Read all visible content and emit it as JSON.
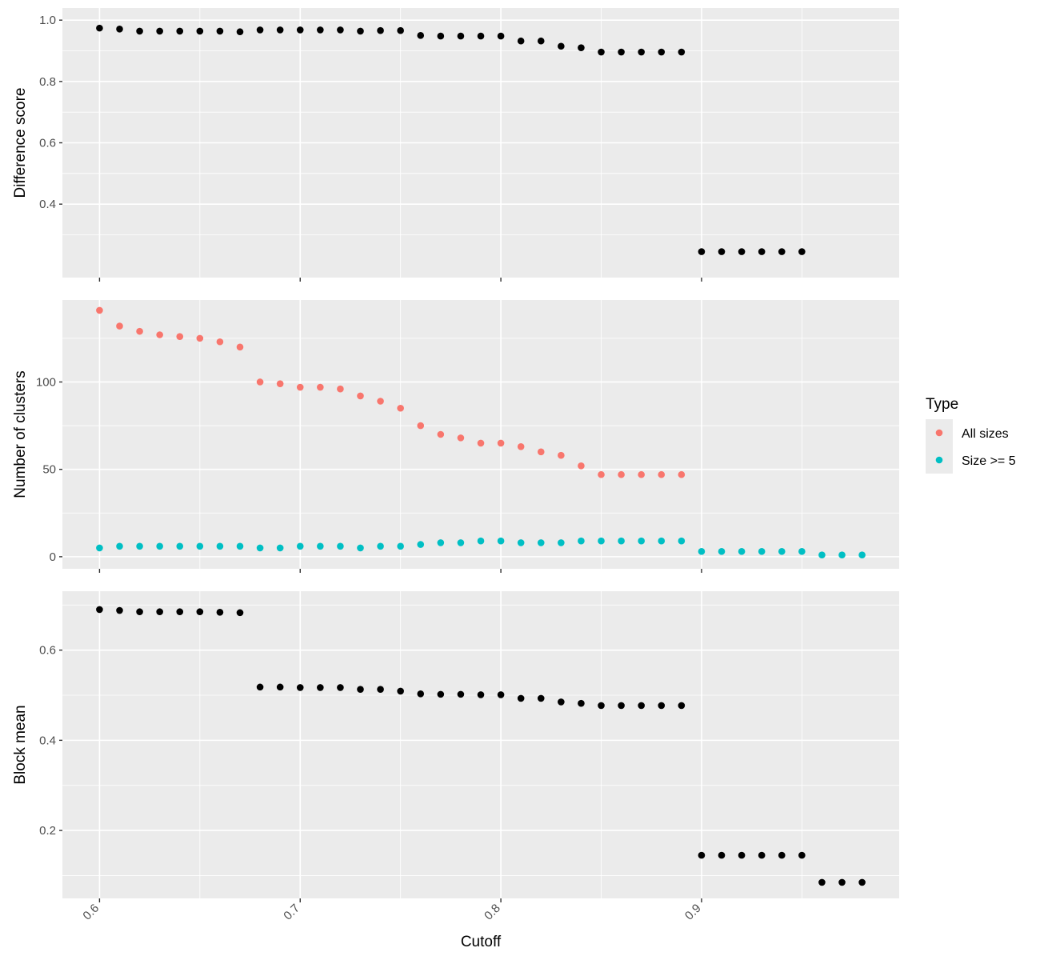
{
  "chart_data": [
    {
      "type": "scatter",
      "ylabel": "Difference score",
      "ylim": [
        0.2,
        1.0
      ],
      "y_ticks": [
        "0.4",
        "0.6",
        "0.8",
        "1.0"
      ],
      "y_tick_values": [
        0.4,
        0.6,
        0.8,
        1.0
      ],
      "y_minor": [
        0.3,
        0.5,
        0.7,
        0.9
      ],
      "series": [
        {
          "color": "#000000",
          "x": [
            0.6,
            0.61,
            0.62,
            0.63,
            0.64,
            0.65,
            0.66,
            0.67,
            0.68,
            0.69,
            0.7,
            0.71,
            0.72,
            0.73,
            0.74,
            0.75,
            0.76,
            0.77,
            0.78,
            0.79,
            0.8,
            0.81,
            0.82,
            0.83,
            0.84,
            0.85,
            0.86,
            0.87,
            0.88,
            0.89,
            0.9,
            0.91,
            0.92,
            0.93,
            0.94,
            0.95
          ],
          "y": [
            0.974,
            0.971,
            0.964,
            0.964,
            0.964,
            0.964,
            0.964,
            0.962,
            0.968,
            0.968,
            0.968,
            0.968,
            0.968,
            0.964,
            0.966,
            0.966,
            0.95,
            0.948,
            0.948,
            0.948,
            0.948,
            0.932,
            0.932,
            0.915,
            0.91,
            0.896,
            0.896,
            0.896,
            0.896,
            0.896,
            0.245,
            0.245,
            0.245,
            0.245,
            0.245,
            0.245
          ]
        }
      ]
    },
    {
      "type": "scatter",
      "ylabel": "Number of clusters",
      "ylim": [
        0,
        140
      ],
      "y_ticks": [
        "0",
        "50",
        "100"
      ],
      "y_tick_values": [
        0,
        50,
        100
      ],
      "y_minor": [
        25,
        75,
        125
      ],
      "legend": {
        "title": "Type",
        "position": "right"
      },
      "series": [
        {
          "name": "All sizes",
          "color": "#f8766d",
          "x": [
            0.6,
            0.61,
            0.62,
            0.63,
            0.64,
            0.65,
            0.66,
            0.67,
            0.68,
            0.69,
            0.7,
            0.71,
            0.72,
            0.73,
            0.74,
            0.75,
            0.76,
            0.77,
            0.78,
            0.79,
            0.8,
            0.81,
            0.82,
            0.83,
            0.84,
            0.85,
            0.86,
            0.87,
            0.88,
            0.89
          ],
          "y": [
            141,
            132,
            129,
            127,
            126,
            125,
            123,
            120,
            100,
            99,
            97,
            97,
            96,
            92,
            89,
            85,
            75,
            70,
            68,
            65,
            65,
            63,
            60,
            58,
            52,
            47,
            47,
            47,
            47,
            47
          ]
        },
        {
          "name": "Size >= 5",
          "color": "#00bfc4",
          "x": [
            0.6,
            0.61,
            0.62,
            0.63,
            0.64,
            0.65,
            0.66,
            0.67,
            0.68,
            0.69,
            0.7,
            0.71,
            0.72,
            0.73,
            0.74,
            0.75,
            0.76,
            0.77,
            0.78,
            0.79,
            0.8,
            0.81,
            0.82,
            0.83,
            0.84,
            0.85,
            0.86,
            0.87,
            0.88,
            0.89,
            0.9,
            0.91,
            0.92,
            0.93,
            0.94,
            0.95,
            0.96,
            0.97,
            0.98
          ],
          "y": [
            5,
            6,
            6,
            6,
            6,
            6,
            6,
            6,
            5,
            5,
            6,
            6,
            6,
            5,
            6,
            6,
            7,
            8,
            8,
            9,
            9,
            8,
            8,
            8,
            9,
            9,
            9,
            9,
            9,
            9,
            3,
            3,
            3,
            3,
            3,
            3,
            1,
            1,
            1
          ]
        }
      ]
    },
    {
      "type": "scatter",
      "ylabel": "Block mean",
      "xlabel": "Cutoff",
      "ylim": [
        0.08,
        0.7
      ],
      "y_ticks": [
        "0.2",
        "0.4",
        "0.6"
      ],
      "y_tick_values": [
        0.2,
        0.4,
        0.6
      ],
      "y_minor": [
        0.1,
        0.3,
        0.5,
        0.7
      ],
      "series": [
        {
          "color": "#000000",
          "x": [
            0.6,
            0.61,
            0.62,
            0.63,
            0.64,
            0.65,
            0.66,
            0.67,
            0.68,
            0.69,
            0.7,
            0.71,
            0.72,
            0.73,
            0.74,
            0.75,
            0.76,
            0.77,
            0.78,
            0.79,
            0.8,
            0.81,
            0.82,
            0.83,
            0.84,
            0.85,
            0.86,
            0.87,
            0.88,
            0.89,
            0.9,
            0.91,
            0.92,
            0.93,
            0.94,
            0.95,
            0.96,
            0.97,
            0.98
          ],
          "y": [
            0.69,
            0.688,
            0.685,
            0.685,
            0.685,
            0.685,
            0.684,
            0.683,
            0.518,
            0.518,
            0.517,
            0.517,
            0.517,
            0.513,
            0.513,
            0.509,
            0.503,
            0.502,
            0.502,
            0.501,
            0.501,
            0.493,
            0.493,
            0.485,
            0.482,
            0.477,
            0.477,
            0.477,
            0.477,
            0.477,
            0.145,
            0.145,
            0.145,
            0.145,
            0.145,
            0.145,
            0.085,
            0.085,
            0.085
          ]
        }
      ]
    }
  ],
  "x_axis": {
    "title": "Cutoff",
    "xlim": [
      0.5815,
      0.9985
    ],
    "ticks": [
      "0.6",
      "0.7",
      "0.8",
      "0.9"
    ],
    "tick_values": [
      0.6,
      0.7,
      0.8,
      0.9
    ],
    "minor": [
      0.65,
      0.75,
      0.85,
      0.95
    ],
    "tick_label_rotation_deg": -45
  },
  "grid": true,
  "theme": {
    "panel_background": "#ebebeb",
    "grid_color": "#ffffff"
  }
}
